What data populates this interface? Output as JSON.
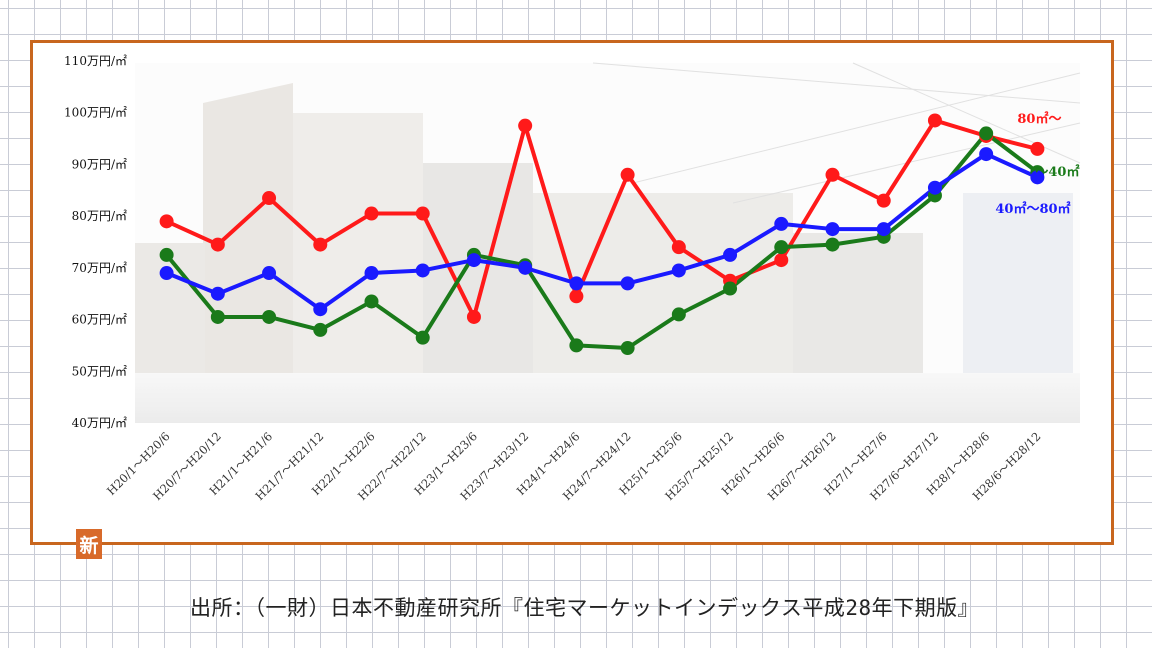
{
  "chart_data": {
    "type": "line",
    "title": "",
    "xlabel": "",
    "ylabel": "",
    "ylim": [
      40,
      110
    ],
    "yticks": [
      {
        "value": 40,
        "label": "40万円/㎡"
      },
      {
        "value": 50,
        "label": "50万円/㎡"
      },
      {
        "value": 60,
        "label": "60万円/㎡"
      },
      {
        "value": 70,
        "label": "70万円/㎡"
      },
      {
        "value": 80,
        "label": "80万円/㎡"
      },
      {
        "value": 90,
        "label": "90万円/㎡"
      },
      {
        "value": 100,
        "label": "100万円/㎡"
      },
      {
        "value": 110,
        "label": "110万円/㎡"
      }
    ],
    "categories": [
      "H20/1～H20/6",
      "H20/7～H20/12",
      "H21/1～H21/6",
      "H21/7～H21/12",
      "H22/1～H22/6",
      "H22/7～H22/12",
      "H23/1～H23/6",
      "H23/7～H23/12",
      "H24/1～H24/6",
      "H24/7～H24/12",
      "H25/1～H25/6",
      "H25/7～H25/12",
      "H26/1～H26/6",
      "H26/7～H26/12",
      "H27/1～H27/6",
      "H27/6～H27/12",
      "H28/1～H28/6",
      "H28/6～H28/12"
    ],
    "series": [
      {
        "name": "80㎡～",
        "color": "#ff1a1a",
        "values": [
          79,
          74.5,
          83.5,
          74.5,
          80.5,
          80.5,
          60.5,
          97.5,
          64.5,
          88,
          74,
          67.5,
          71.5,
          88,
          83,
          98.5,
          95.5,
          93
        ]
      },
      {
        "name": "～40㎡",
        "color": "#1a7a1a",
        "values": [
          72.5,
          60.5,
          60.5,
          58,
          63.5,
          56.5,
          72.5,
          70.5,
          55,
          54.5,
          61,
          66,
          74,
          74.5,
          76,
          84,
          96,
          88.5
        ]
      },
      {
        "name": "40㎡～80㎡",
        "color": "#1a1aff",
        "values": [
          69,
          65,
          69,
          62,
          69,
          69.5,
          71.5,
          70,
          67,
          67,
          69.5,
          72.5,
          78.5,
          77.5,
          77.5,
          85.5,
          92,
          87.5
        ]
      }
    ],
    "grid": false,
    "legend": "inline-right"
  },
  "source": "出所：（一財）日本不動産研究所『住宅マーケットインデックス平成28年下期版』",
  "logo_text": "新"
}
